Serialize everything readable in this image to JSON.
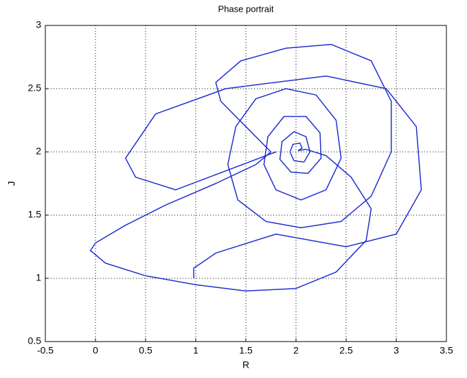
{
  "chart_data": {
    "type": "line",
    "title": "Phase portrait",
    "x_label": "R",
    "y_label": "J",
    "x": [
      2.02,
      2.06,
      2.04,
      1.97,
      1.94,
      1.98,
      2.08,
      2.14,
      2.1,
      1.98,
      1.86,
      1.84,
      1.95,
      2.12,
      2.25,
      2.24,
      2.1,
      1.88,
      1.72,
      1.68,
      1.8,
      2.05,
      2.3,
      2.45,
      2.4,
      2.2,
      1.9,
      1.6,
      1.4,
      1.32,
      1.42,
      1.7,
      2.05,
      2.45,
      2.75,
      2.95,
      2.95,
      2.75,
      2.35,
      1.9,
      1.45,
      1.2,
      1.25,
      1.5,
      1.75,
      1.6,
      1.2,
      0.7,
      0.3,
      0.0,
      -0.05,
      0.1,
      0.5,
      1.0,
      1.5,
      2.0,
      2.4,
      2.7,
      2.75,
      2.55,
      2.3,
      2.1,
      2.02,
      null,
      0.98,
      0.98,
      1.2,
      1.8,
      2.5,
      3.0,
      3.25,
      3.2,
      2.9,
      2.3,
      1.3,
      0.6,
      0.3,
      0.4,
      0.8,
      1.8
    ],
    "values": [
      2.01,
      2.03,
      2.07,
      2.06,
      2.0,
      1.93,
      1.92,
      2.0,
      2.12,
      2.16,
      2.08,
      1.94,
      1.84,
      1.83,
      1.95,
      2.15,
      2.28,
      2.28,
      2.12,
      1.9,
      1.7,
      1.62,
      1.7,
      1.95,
      2.25,
      2.45,
      2.5,
      2.42,
      2.2,
      1.9,
      1.62,
      1.45,
      1.4,
      1.45,
      1.65,
      2.0,
      2.4,
      2.72,
      2.85,
      2.82,
      2.72,
      2.55,
      2.4,
      2.2,
      2.0,
      1.9,
      1.75,
      1.58,
      1.42,
      1.28,
      1.22,
      1.12,
      1.02,
      0.95,
      0.9,
      0.92,
      1.05,
      1.3,
      1.55,
      1.8,
      1.97,
      2.02,
      2.01,
      null,
      1.0,
      1.08,
      1.2,
      1.35,
      1.25,
      1.35,
      1.7,
      2.2,
      2.5,
      2.6,
      2.5,
      2.3,
      1.95,
      1.8,
      1.7,
      2.0
    ],
    "color": "#1f2fd0",
    "xlim": [
      -0.5,
      3.5
    ],
    "xticks": [
      -0.5,
      0,
      0.5,
      1,
      1.5,
      2,
      2.5,
      3,
      3.5
    ],
    "ylim": [
      0.5,
      3
    ],
    "yticks": [
      0.5,
      1,
      1.5,
      2,
      2.5,
      3
    ],
    "grid": true
  }
}
